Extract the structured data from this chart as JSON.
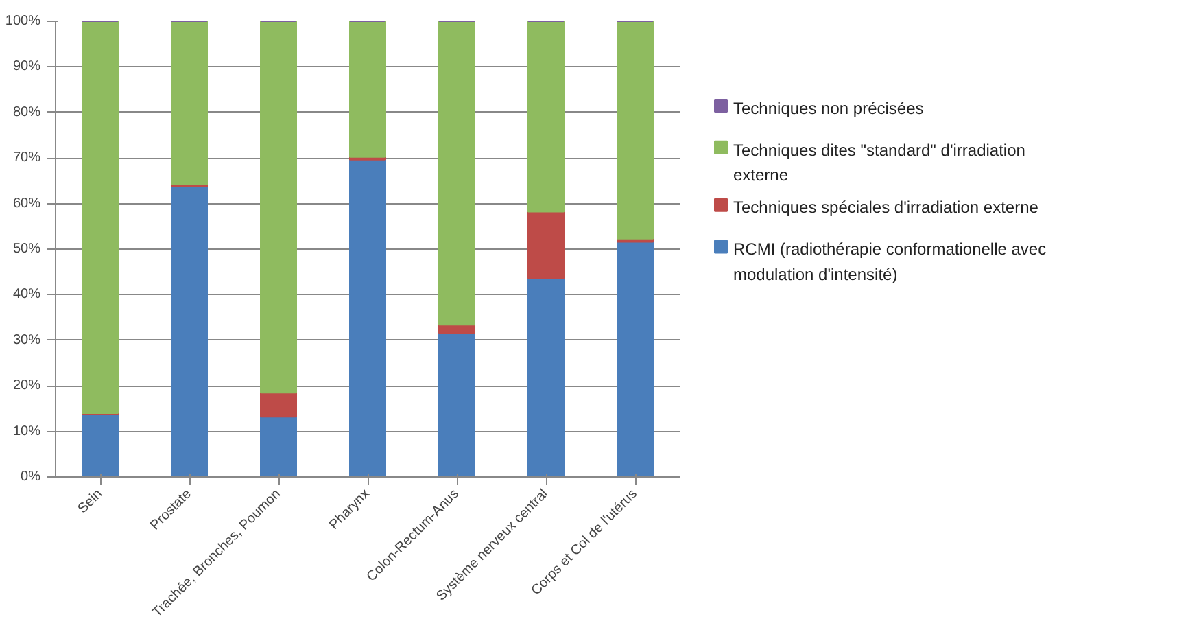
{
  "chart_data": {
    "type": "bar",
    "stacked": true,
    "categories": [
      "Sein",
      "Prostate",
      "Trachée, Bronches, Poumon",
      "Pharynx",
      "Colon-Rectum-Anus",
      "Système nerveux central",
      "Corps et Col de l'utérus"
    ],
    "series": [
      {
        "name": "RCMI (radiothérapie conformationelle avec modulation d'intensité)",
        "color": "#4a7ebb",
        "values": [
          13.7,
          63.7,
          13.2,
          69.6,
          31.6,
          43.6,
          51.6
        ]
      },
      {
        "name": "Techniques spéciales d'irradiation externe",
        "color": "#be4b48",
        "values": [
          0.3,
          0.5,
          5.3,
          0.6,
          1.8,
          14.6,
          0.7
        ]
      },
      {
        "name": "Techniques dites \"standard\" d'irradiation externe",
        "color": "#8fbb5f",
        "values": [
          86.0,
          35.8,
          81.5,
          29.8,
          66.6,
          41.8,
          47.7
        ]
      },
      {
        "name": "Techniques non précisées",
        "color": "#7d60a0",
        "values": [
          0,
          0,
          0,
          0,
          0,
          0,
          0
        ]
      }
    ],
    "ylim": [
      0,
      100
    ],
    "yticks": [
      {
        "value": 0,
        "label": "0%"
      },
      {
        "value": 10,
        "label": "10%"
      },
      {
        "value": 20,
        "label": "20%"
      },
      {
        "value": 30,
        "label": "30%"
      },
      {
        "value": 40,
        "label": "40%"
      },
      {
        "value": 50,
        "label": "50%"
      },
      {
        "value": 60,
        "label": "60%"
      },
      {
        "value": 70,
        "label": "70%"
      },
      {
        "value": 80,
        "label": "80%"
      },
      {
        "value": 90,
        "label": "90%"
      },
      {
        "value": 100,
        "label": "100%"
      }
    ],
    "grid": "y",
    "legend": "right"
  }
}
